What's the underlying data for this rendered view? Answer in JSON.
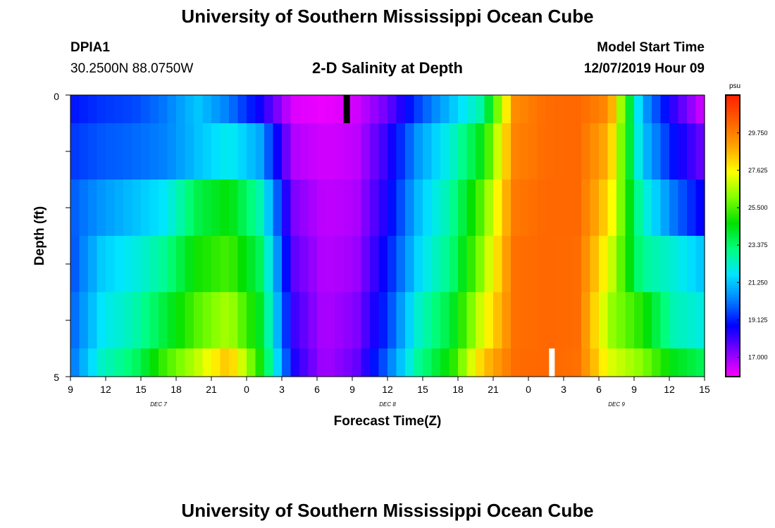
{
  "header": {
    "title": "University of Southern Mississippi Ocean Cube",
    "station": "DPIA1",
    "coords": "30.2500N 88.0750W",
    "plot_title": "2-D Salinity at Depth",
    "model_label": "Model Start Time",
    "model_time": "12/07/2019 Hour 09"
  },
  "footer": {
    "title": "University of Southern Mississippi Ocean Cube"
  },
  "chart_data": {
    "type": "heatmap",
    "title": "2-D Salinity at Depth",
    "xlabel": "Forecast Time(Z)",
    "ylabel": "Depth (ft)",
    "ylim": [
      0,
      5
    ],
    "y_ticks": [
      "0",
      "5"
    ],
    "x_tick_labels": [
      "9",
      "12",
      "15",
      "18",
      "21",
      "0",
      "3",
      "6",
      "9",
      "12",
      "15",
      "18",
      "21",
      "0",
      "3",
      "6",
      "9",
      "12",
      "15"
    ],
    "date_labels": [
      "DEC 7",
      "DEC 8",
      "DEC 9"
    ],
    "x_range_hours": [
      0,
      54
    ],
    "colorbar": {
      "unit": "psu",
      "min": 15.9,
      "max": 31.9,
      "tick_labels": [
        "17.000",
        "19.125",
        "21.250",
        "23.375",
        "25.500",
        "27.625",
        "29.750"
      ],
      "colors": [
        "#ff00ff",
        "#8000ff",
        "#0000ff",
        "#0080ff",
        "#00e5ff",
        "#00ff80",
        "#00e000",
        "#80ff00",
        "#ffff00",
        "#ffa500",
        "#ff6000",
        "#ff2000"
      ]
    },
    "depth_layers": [
      "0-0.5",
      "0.5-1.5",
      "1.5-2.5",
      "2.5-3.5",
      "3.5-4.5",
      "4.5-5"
    ],
    "hours": [
      0,
      3,
      6,
      9,
      12,
      15,
      18,
      21,
      24,
      27,
      30,
      33,
      36,
      39,
      42,
      45,
      48,
      51,
      54
    ],
    "salinity": [
      [
        19.0,
        19.4,
        19.6,
        20.2,
        21.3,
        20.2,
        18.6,
        16.3,
        16.1,
        16.4,
        17.6,
        19.6,
        21.2,
        22.8,
        29.5,
        30.2,
        30.3,
        29.5,
        21.0,
        18.3,
        16.3
      ],
      [
        19.4,
        19.8,
        20.0,
        20.3,
        21.2,
        22.0,
        20.8,
        16.8,
        16.4,
        16.6,
        18.3,
        20.7,
        22.2,
        24.5,
        29.7,
        30.2,
        30.3,
        28.7,
        21.4,
        19.0,
        17.5
      ],
      [
        19.8,
        20.6,
        21.2,
        21.8,
        23.8,
        24.6,
        22.6,
        17.4,
        16.6,
        16.8,
        18.6,
        21.2,
        22.8,
        25.7,
        29.9,
        30.3,
        30.3,
        28.0,
        22.5,
        20.2,
        18.6
      ],
      [
        19.6,
        21.4,
        22.0,
        23.0,
        24.8,
        25.4,
        23.6,
        17.8,
        16.7,
        17.0,
        19.0,
        21.6,
        23.2,
        26.3,
        30.1,
        30.3,
        30.2,
        27.2,
        23.0,
        22.2,
        21.2
      ],
      [
        19.8,
        21.8,
        22.6,
        24.0,
        25.6,
        26.6,
        24.2,
        18.2,
        16.8,
        17.3,
        19.4,
        22.4,
        24.0,
        27.2,
        30.1,
        30.3,
        30.2,
        26.4,
        25.0,
        22.6,
        22.0
      ],
      [
        20.0,
        22.4,
        23.4,
        25.4,
        26.8,
        28.6,
        24.8,
        18.6,
        16.9,
        17.6,
        20.0,
        23.0,
        24.8,
        28.4,
        30.2,
        30.3,
        30.1,
        27.2,
        26.2,
        24.4,
        23.6
      ]
    ],
    "black_marker_hour": 23.5,
    "white_marker_hour": 41
  }
}
